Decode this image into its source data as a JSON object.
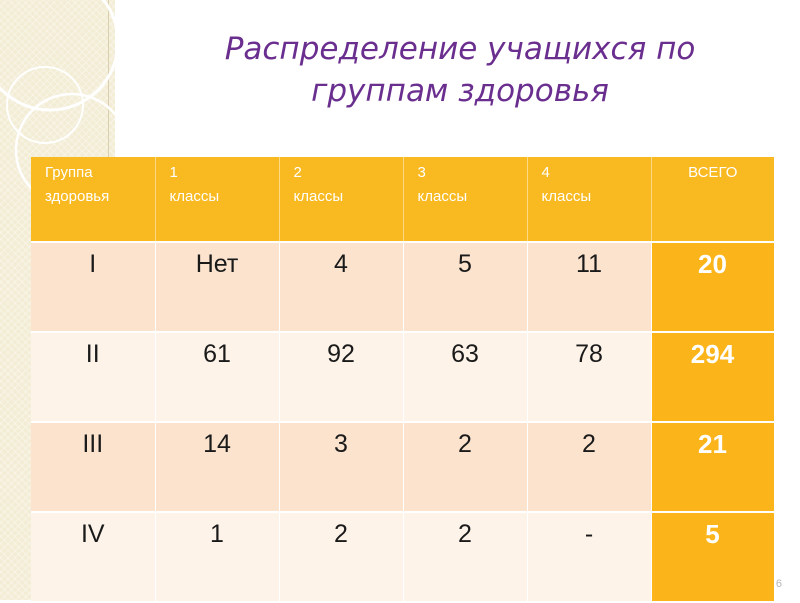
{
  "title_line1": "Распределение учащихся по",
  "title_line2": "группам здоровья",
  "table": {
    "headers": [
      [
        "Группа",
        "здоровья"
      ],
      [
        "1",
        "классы"
      ],
      [
        "2",
        "классы"
      ],
      [
        "3",
        "классы"
      ],
      [
        "4",
        "классы"
      ],
      [
        "ВСЕГО",
        ""
      ]
    ],
    "rows": [
      [
        "I",
        "Нет",
        "4",
        "5",
        "11",
        "20"
      ],
      [
        "II",
        "61",
        "92",
        "63",
        "78",
        "294"
      ],
      [
        "III",
        "14",
        "3",
        "2",
        "2",
        "21"
      ],
      [
        "IV",
        "1",
        "2",
        "2",
        "-",
        "5"
      ]
    ]
  },
  "page_number": "6",
  "colors": {
    "header_bg": "#f9b920",
    "total_bg": "#fbb51b",
    "row_dark": "#fbe3cd",
    "row_light": "#fdf3e8",
    "title": "#6a2e8f"
  }
}
